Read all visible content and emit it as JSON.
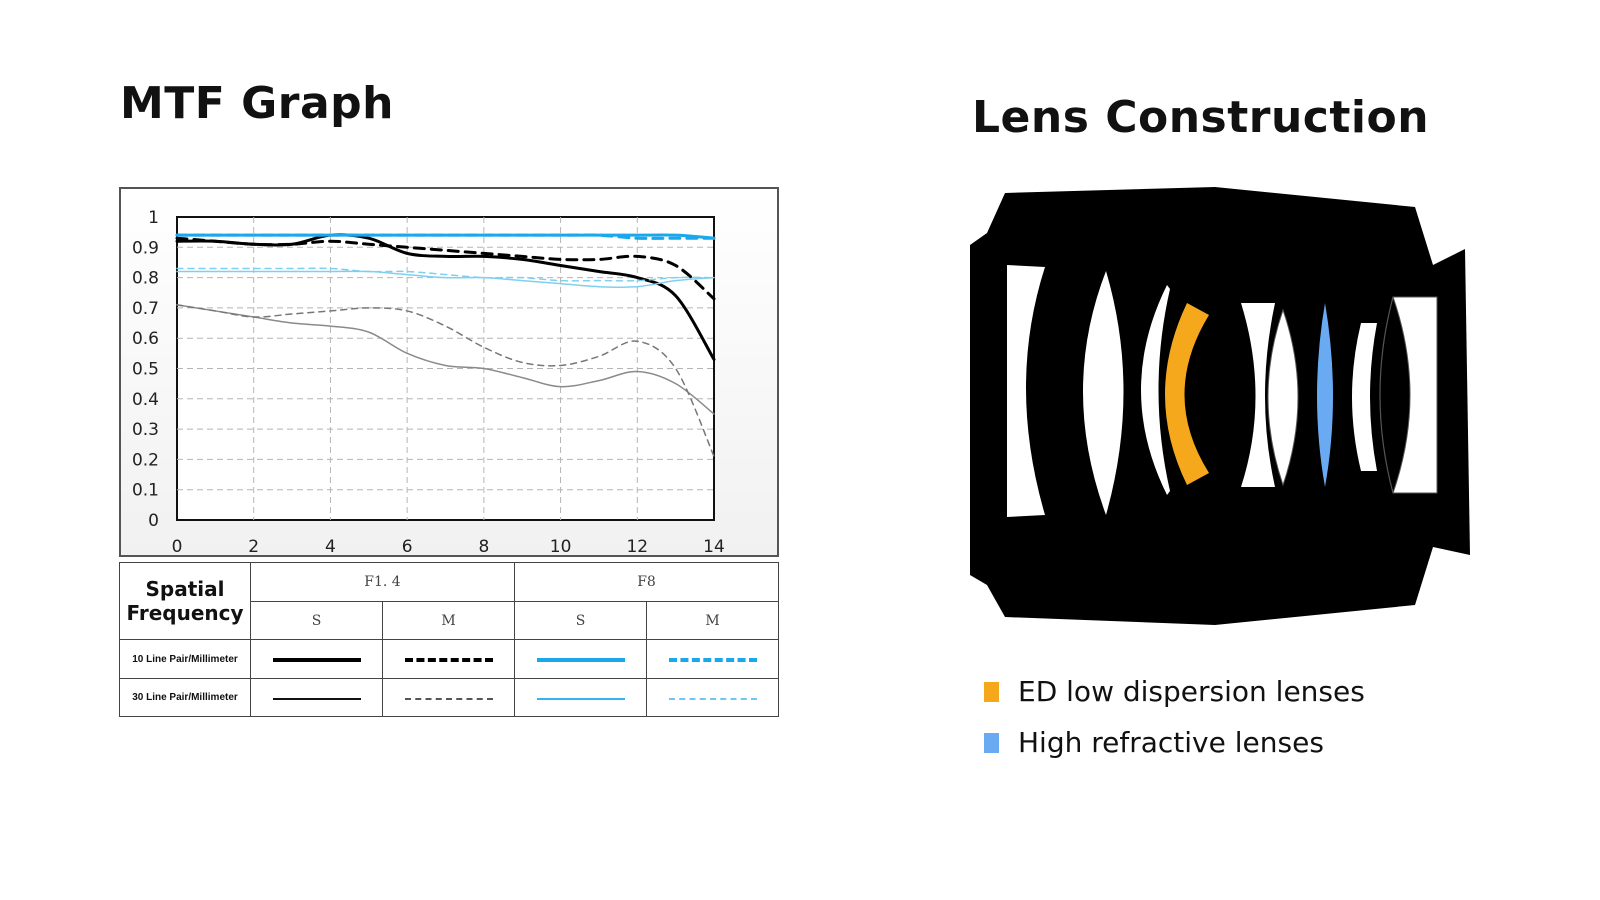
{
  "mtf_title": "MTF Graph",
  "lens_title": "Lens Construction",
  "chart_data": {
    "type": "line",
    "title": "",
    "xlabel": "",
    "ylabel": "",
    "xlim": [
      0,
      14
    ],
    "ylim": [
      0,
      1
    ],
    "x_ticks": [
      "0",
      "2",
      "4",
      "6",
      "8",
      "10",
      "12",
      "14"
    ],
    "y_ticks": [
      "0",
      "0.1",
      "0.2",
      "0.3",
      "0.4",
      "0.5",
      "0.6",
      "0.7",
      "0.8",
      "0.9",
      "1"
    ],
    "grid": true,
    "x": [
      0,
      1,
      2,
      3,
      4,
      5,
      6,
      7,
      8,
      9,
      10,
      11,
      12,
      13,
      14
    ],
    "series": [
      {
        "aperture": "F1.4",
        "direction": "S",
        "frequency": "10 Line Pair/Millimeter",
        "color": "#000000",
        "width": 3,
        "dash": "solid",
        "values": [
          0.92,
          0.92,
          0.91,
          0.91,
          0.94,
          0.93,
          0.88,
          0.87,
          0.87,
          0.86,
          0.84,
          0.82,
          0.8,
          0.74,
          0.53
        ]
      },
      {
        "aperture": "F1.4",
        "direction": "M",
        "frequency": "10 Line Pair/Millimeter",
        "color": "#000000",
        "width": 3,
        "dash": "dashed",
        "values": [
          0.93,
          0.92,
          0.91,
          0.91,
          0.92,
          0.91,
          0.9,
          0.89,
          0.88,
          0.87,
          0.86,
          0.86,
          0.87,
          0.84,
          0.73
        ]
      },
      {
        "aperture": "F8",
        "direction": "S",
        "frequency": "10 Line Pair/Millimeter",
        "color": "#1aa7ec",
        "width": 3,
        "dash": "solid",
        "values": [
          0.94,
          0.94,
          0.94,
          0.94,
          0.94,
          0.94,
          0.94,
          0.94,
          0.94,
          0.94,
          0.94,
          0.94,
          0.94,
          0.94,
          0.93
        ]
      },
      {
        "aperture": "F8",
        "direction": "M",
        "frequency": "10 Line Pair/Millimeter",
        "color": "#1aa7ec",
        "width": 3,
        "dash": "dashed",
        "values": [
          0.94,
          0.94,
          0.94,
          0.94,
          0.94,
          0.94,
          0.94,
          0.94,
          0.94,
          0.94,
          0.94,
          0.94,
          0.93,
          0.93,
          0.93
        ]
      },
      {
        "aperture": "F1.4",
        "direction": "S",
        "frequency": "30 Line Pair/Millimeter",
        "color": "#8a8a8a",
        "width": 1.5,
        "dash": "solid",
        "values": [
          0.71,
          0.69,
          0.67,
          0.65,
          0.64,
          0.62,
          0.55,
          0.51,
          0.5,
          0.47,
          0.44,
          0.46,
          0.49,
          0.45,
          0.35
        ]
      },
      {
        "aperture": "F1.4",
        "direction": "M",
        "frequency": "30 Line Pair/Millimeter",
        "color": "#777777",
        "width": 1.5,
        "dash": "dashed",
        "values": [
          0.71,
          0.69,
          0.67,
          0.68,
          0.69,
          0.7,
          0.69,
          0.64,
          0.57,
          0.52,
          0.51,
          0.54,
          0.59,
          0.5,
          0.21
        ]
      },
      {
        "aperture": "F8",
        "direction": "S",
        "frequency": "30 Line Pair/Millimeter",
        "color": "#7fd0f0",
        "width": 1.5,
        "dash": "solid",
        "values": [
          0.82,
          0.82,
          0.82,
          0.82,
          0.82,
          0.82,
          0.81,
          0.8,
          0.8,
          0.79,
          0.78,
          0.77,
          0.77,
          0.79,
          0.8
        ]
      },
      {
        "aperture": "F8",
        "direction": "M",
        "frequency": "30 Line Pair/Millimeter",
        "color": "#7fd0f0",
        "width": 1.5,
        "dash": "dashed",
        "values": [
          0.83,
          0.83,
          0.83,
          0.83,
          0.83,
          0.82,
          0.82,
          0.81,
          0.8,
          0.8,
          0.79,
          0.79,
          0.79,
          0.8,
          0.8
        ]
      }
    ]
  },
  "legend_table": {
    "spatial_line1": "Spatial",
    "spatial_line2": "Frequency",
    "aperture_1": "F1. 4",
    "aperture_2": "F8",
    "s": "S",
    "m": "M",
    "row_10": "10 Line Pair/Millimeter",
    "row_30": "30 Line Pair/Millimeter"
  },
  "lens_legend": [
    {
      "label": "ED low dispersion lenses",
      "color": "#f5a81c"
    },
    {
      "label": "High refractive lenses",
      "color": "#6aaaf2"
    }
  ],
  "colors": {
    "ed_lens": "#f5a81c",
    "high_refractive_lens": "#6aaaf2",
    "barrel": "#000000"
  }
}
